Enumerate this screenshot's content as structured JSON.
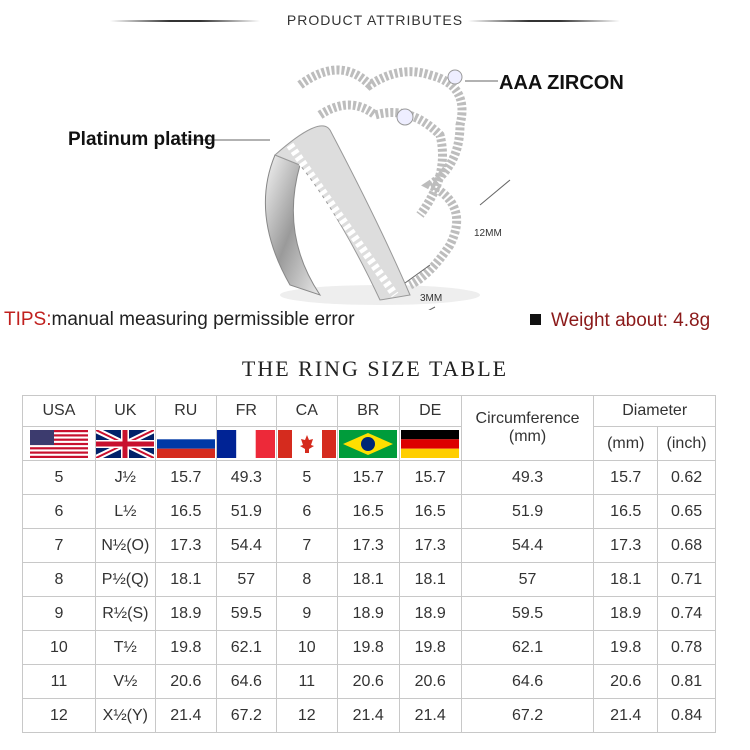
{
  "header": {
    "title": "PRODUCT ATTRIBUTES"
  },
  "callouts": {
    "zircon": "AAA ZIRCON",
    "plating": "Platinum plating",
    "height": "12MM",
    "width": "3MM"
  },
  "tips": {
    "prefix": "TIPS:",
    "text": "manual measuring permissible error"
  },
  "weight": "Weight about: 4.8g",
  "table": {
    "title": "THE RING SIZE TABLE",
    "columns": [
      "USA",
      "UK",
      "RU",
      "FR",
      "CA",
      "BR",
      "DE"
    ],
    "circumference": "Circumference\n(mm)",
    "diameter": "Diameter",
    "diameter_units": [
      "(mm)",
      "(inch)"
    ],
    "flags": [
      "us-flag",
      "uk-flag",
      "russia-flag",
      "france-flag",
      "canada-flag",
      "brazil-flag",
      "germany-flag"
    ],
    "rows": [
      [
        "5",
        "J½",
        "15.7",
        "49.3",
        "5",
        "15.7",
        "15.7",
        "49.3",
        "15.7",
        "0.62"
      ],
      [
        "6",
        "L½",
        "16.5",
        "51.9",
        "6",
        "16.5",
        "16.5",
        "51.9",
        "16.5",
        "0.65"
      ],
      [
        "7",
        "N½(O)",
        "17.3",
        "54.4",
        "7",
        "17.3",
        "17.3",
        "54.4",
        "17.3",
        "0.68"
      ],
      [
        "8",
        "P½(Q)",
        "18.1",
        "57",
        "8",
        "18.1",
        "18.1",
        "57",
        "18.1",
        "0.71"
      ],
      [
        "9",
        "R½(S)",
        "18.9",
        "59.5",
        "9",
        "18.9",
        "18.9",
        "59.5",
        "18.9",
        "0.74"
      ],
      [
        "10",
        "T½",
        "19.8",
        "62.1",
        "10",
        "19.8",
        "19.8",
        "62.1",
        "19.8",
        "0.78"
      ],
      [
        "11",
        "V½",
        "20.6",
        "64.6",
        "11",
        "20.6",
        "20.6",
        "64.6",
        "20.6",
        "0.81"
      ],
      [
        "12",
        "X½(Y)",
        "21.4",
        "67.2",
        "12",
        "21.4",
        "21.4",
        "67.2",
        "21.4",
        "0.84"
      ]
    ]
  }
}
